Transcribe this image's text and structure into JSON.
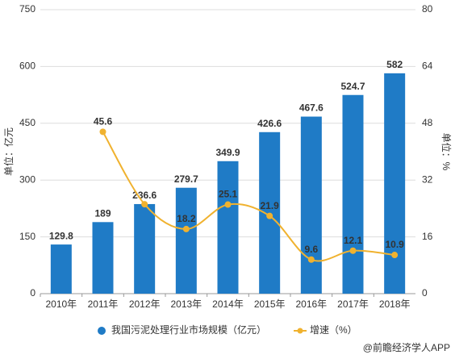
{
  "chart_data": {
    "type": "bar_line",
    "y_label": "单位：亿元",
    "y2_label": "单位：%",
    "categories": [
      "2010年",
      "2011年",
      "2012年",
      "2013年",
      "2014年",
      "2015年",
      "2016年",
      "2017年",
      "2018年"
    ],
    "series": [
      {
        "name": "我国污泥处理行业市场规模（亿元）",
        "color": "#1f7bc6",
        "kind": "bar",
        "values": [
          129.8,
          189,
          236.6,
          279.7,
          349.9,
          426.6,
          467.6,
          524.7,
          582
        ]
      },
      {
        "name": "增速（%）",
        "color": "#f0b22f",
        "kind": "line",
        "axis": "y2",
        "values": [
          null,
          45.6,
          25.2,
          18.2,
          25.1,
          21.9,
          9.6,
          12.1,
          10.9
        ],
        "value_labels": [
          null,
          "45.6",
          null,
          "18.2",
          "25.1",
          "21.9",
          "9.6",
          "12.1",
          "10.9"
        ]
      }
    ],
    "ylim": [
      0,
      750
    ],
    "yticks": [
      0,
      150,
      300,
      450,
      600,
      750
    ],
    "y2lim": [
      0,
      80
    ],
    "y2ticks": [
      0,
      16,
      32,
      48,
      64,
      80
    ],
    "grid": true,
    "legend": "bottom",
    "footer": "@前瞻经济学人APP"
  }
}
